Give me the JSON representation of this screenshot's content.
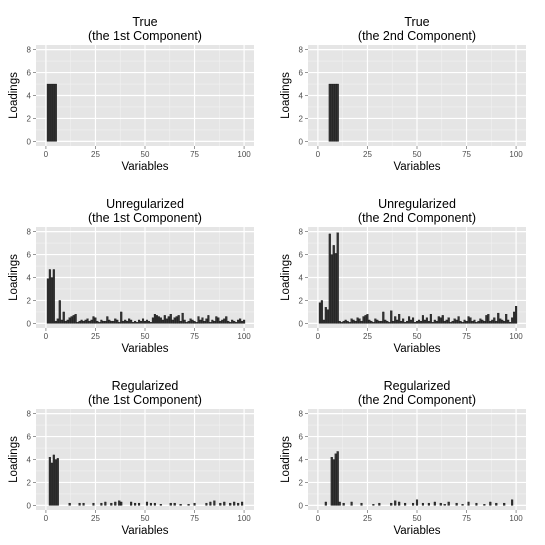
{
  "chart_data": [
    {
      "type": "bar",
      "title": "True",
      "subtitle": "(the 1st Component)",
      "xlabel": "Variables",
      "ylabel": "Loadings",
      "xlim": [
        0,
        100
      ],
      "ylim": [
        0,
        8
      ],
      "xticks": [
        0,
        25,
        50,
        75,
        100
      ],
      "yticks": [
        0,
        2,
        4,
        6,
        8
      ],
      "grid": true,
      "x": [
        1,
        2,
        3,
        4,
        5
      ],
      "values": [
        5,
        5,
        5,
        5,
        5
      ]
    },
    {
      "type": "bar",
      "title": "True",
      "subtitle": "(the 2nd Component)",
      "xlabel": "Variables",
      "ylabel": "Loadings",
      "xlim": [
        0,
        100
      ],
      "ylim": [
        0,
        8
      ],
      "xticks": [
        0,
        25,
        50,
        75,
        100
      ],
      "yticks": [
        0,
        2,
        4,
        6,
        8
      ],
      "grid": true,
      "x": [
        6,
        7,
        8,
        9,
        10
      ],
      "values": [
        5,
        5,
        5,
        5,
        5
      ]
    },
    {
      "type": "bar",
      "title": "Unregularized",
      "subtitle": "(the 1st Component)",
      "xlabel": "Variables",
      "ylabel": "Loadings",
      "xlim": [
        0,
        100
      ],
      "ylim": [
        0,
        8
      ],
      "xticks": [
        0,
        25,
        50,
        75,
        100
      ],
      "yticks": [
        0,
        2,
        4,
        6,
        8
      ],
      "grid": true,
      "x": [
        1,
        2,
        3,
        4,
        5,
        6,
        7,
        8,
        9,
        10,
        11,
        12,
        13,
        14,
        15,
        16,
        17,
        18,
        19,
        20,
        21,
        22,
        23,
        24,
        25,
        26,
        27,
        28,
        29,
        30,
        31,
        32,
        33,
        34,
        35,
        36,
        37,
        38,
        39,
        40,
        41,
        42,
        43,
        44,
        45,
        46,
        47,
        48,
        49,
        50,
        51,
        52,
        53,
        54,
        55,
        56,
        57,
        58,
        59,
        60,
        61,
        62,
        63,
        64,
        65,
        66,
        67,
        68,
        69,
        70,
        71,
        72,
        73,
        74,
        75,
        76,
        77,
        78,
        79,
        80,
        81,
        82,
        83,
        84,
        85,
        86,
        87,
        88,
        89,
        90,
        91,
        92,
        93,
        94,
        95,
        96,
        97,
        98,
        99,
        100
      ],
      "values": [
        3.9,
        4.7,
        4.0,
        4.7,
        0.2,
        0.4,
        2.0,
        0.3,
        1.0,
        0.2,
        0.3,
        0.5,
        0.6,
        0.7,
        0.8,
        0.1,
        0.2,
        0.3,
        0.2,
        0.3,
        0.4,
        0.2,
        0.3,
        0.6,
        0.5,
        0.2,
        0.1,
        0.3,
        0.2,
        0.2,
        0.6,
        0.3,
        0.2,
        0.2,
        0.4,
        0.3,
        0.1,
        1.0,
        0.2,
        0.3,
        0.2,
        0.4,
        0.3,
        0.1,
        0.2,
        0.1,
        0.3,
        0.2,
        0.4,
        0.2,
        0.3,
        0.2,
        0.1,
        0.5,
        0.8,
        0.7,
        0.6,
        0.5,
        0.3,
        0.7,
        0.4,
        0.6,
        0.8,
        0.3,
        0.5,
        0.6,
        0.7,
        0.2,
        0.9,
        0.3,
        0.1,
        0.2,
        0.4,
        0.3,
        0.2,
        0.1,
        0.6,
        0.3,
        0.5,
        0.2,
        0.4,
        0.7,
        0.1,
        0.3,
        0.2,
        0.6,
        0.5,
        0.2,
        0.3,
        0.4,
        0.6,
        0.2,
        0.1,
        0.3,
        0.2,
        0.1,
        0.3,
        0.4,
        0.2,
        0.3
      ]
    },
    {
      "type": "bar",
      "title": "Unregularized",
      "subtitle": "(the 2nd Component)",
      "xlabel": "Variables",
      "ylabel": "Loadings",
      "xlim": [
        0,
        100
      ],
      "ylim": [
        0,
        8
      ],
      "xticks": [
        0,
        25,
        50,
        75,
        100
      ],
      "yticks": [
        0,
        2,
        4,
        6,
        8
      ],
      "grid": true,
      "x": [
        1,
        2,
        3,
        4,
        5,
        6,
        7,
        8,
        9,
        10,
        11,
        12,
        13,
        14,
        15,
        16,
        17,
        18,
        19,
        20,
        21,
        22,
        23,
        24,
        25,
        26,
        27,
        28,
        29,
        30,
        31,
        32,
        33,
        34,
        35,
        36,
        37,
        38,
        39,
        40,
        41,
        42,
        43,
        44,
        45,
        46,
        47,
        48,
        49,
        50,
        51,
        52,
        53,
        54,
        55,
        56,
        57,
        58,
        59,
        60,
        61,
        62,
        63,
        64,
        65,
        66,
        67,
        68,
        69,
        70,
        71,
        72,
        73,
        74,
        75,
        76,
        77,
        78,
        79,
        80,
        81,
        82,
        83,
        84,
        85,
        86,
        87,
        88,
        89,
        90,
        91,
        92,
        93,
        94,
        95,
        96,
        97,
        98,
        99,
        100
      ],
      "values": [
        1.8,
        2.0,
        0.3,
        1.4,
        1.2,
        7.8,
        6.0,
        6.8,
        6.1,
        7.9,
        0.2,
        0.1,
        0.2,
        0.3,
        0.2,
        0.1,
        0.4,
        0.3,
        0.2,
        0.5,
        0.4,
        0.2,
        0.6,
        0.7,
        0.8,
        0.3,
        0.2,
        0.1,
        0.4,
        0.3,
        0.2,
        0.2,
        1.0,
        0.3,
        0.2,
        0.1,
        1.1,
        0.2,
        0.6,
        0.3,
        0.8,
        0.2,
        0.4,
        0.1,
        0.2,
        0.6,
        0.3,
        0.5,
        0.1,
        0.2,
        0.3,
        0.2,
        0.7,
        0.3,
        0.5,
        0.2,
        0.8,
        0.1,
        0.3,
        0.2,
        0.6,
        0.5,
        0.7,
        0.2,
        0.3,
        0.5,
        0.1,
        0.2,
        0.4,
        0.3,
        0.6,
        0.2,
        0.1,
        0.3,
        0.2,
        0.6,
        0.5,
        0.2,
        0.3,
        0.1,
        0.2,
        0.4,
        0.3,
        0.2,
        0.7,
        0.8,
        0.2,
        0.3,
        0.5,
        0.2,
        0.9,
        0.4,
        0.3,
        0.2,
        0.8,
        0.3,
        0.1,
        0.5,
        1.0,
        1.5
      ]
    },
    {
      "type": "bar",
      "title": "Regularized",
      "subtitle": "(the 1st Component)",
      "xlabel": "Variables",
      "ylabel": "Loadings",
      "xlim": [
        0,
        100
      ],
      "ylim": [
        0,
        8
      ],
      "xticks": [
        0,
        25,
        50,
        75,
        100
      ],
      "yticks": [
        0,
        2,
        4,
        6,
        8
      ],
      "grid": true,
      "x": [
        2,
        3,
        4,
        5,
        6,
        12,
        17,
        19,
        24,
        28,
        30,
        33,
        35,
        37,
        38,
        43,
        45,
        47,
        51,
        53,
        55,
        58,
        63,
        65,
        68,
        72,
        75,
        81,
        83,
        85,
        88,
        90,
        93,
        95,
        97,
        99
      ],
      "values": [
        4.2,
        3.7,
        4.4,
        4.0,
        4.1,
        0.2,
        0.2,
        0.2,
        0.2,
        0.2,
        0.3,
        0.2,
        0.3,
        0.4,
        0.3,
        0.3,
        0.2,
        0.2,
        0.3,
        0.2,
        0.2,
        0.1,
        0.2,
        0.2,
        0.1,
        0.1,
        0.2,
        0.2,
        0.3,
        0.4,
        0.2,
        0.3,
        0.2,
        0.3,
        0.2,
        0.3
      ]
    },
    {
      "type": "bar",
      "title": "Regularized",
      "subtitle": "(the 2nd Component)",
      "xlabel": "Variables",
      "ylabel": "Loadings",
      "xlim": [
        0,
        100
      ],
      "ylim": [
        0,
        8
      ],
      "xticks": [
        0,
        25,
        50,
        75,
        100
      ],
      "yticks": [
        0,
        2,
        4,
        6,
        8
      ],
      "grid": true,
      "x": [
        4,
        7,
        8,
        9,
        10,
        11,
        13,
        17,
        22,
        28,
        31,
        37,
        39,
        41,
        44,
        48,
        50,
        53,
        56,
        59,
        62,
        64,
        66,
        70,
        73,
        76,
        80,
        84,
        87,
        90,
        94,
        98
      ],
      "values": [
        0.3,
        4.2,
        4.0,
        4.5,
        4.7,
        0.3,
        0.2,
        0.3,
        0.2,
        0.1,
        0.2,
        0.2,
        0.4,
        0.3,
        0.2,
        0.2,
        0.5,
        0.2,
        0.2,
        0.3,
        0.2,
        0.1,
        0.3,
        0.2,
        0.1,
        0.3,
        0.2,
        0.1,
        0.3,
        0.2,
        0.2,
        0.5
      ]
    }
  ]
}
